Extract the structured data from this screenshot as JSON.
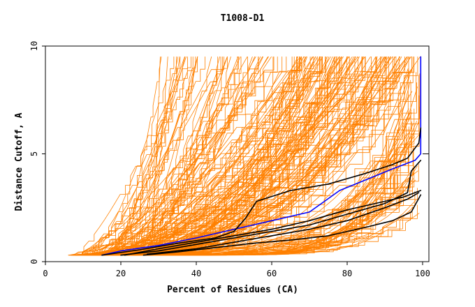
{
  "chart_data": {
    "type": "line",
    "title": "T1008-D1",
    "xlabel": "Percent of Residues (CA)",
    "ylabel": "Distance Cutoff, A",
    "xlim": [
      0,
      100
    ],
    "ylim": [
      0,
      10
    ],
    "xticks": [
      0,
      20,
      40,
      60,
      80,
      100
    ],
    "yticks": [
      0,
      5,
      10
    ],
    "grid": false,
    "legend": "none",
    "colors": {
      "background_models": "#ff8000",
      "highlight_blue": "#0000ff",
      "highlight_black": "#000000",
      "frame": "#000000"
    },
    "series": [
      {
        "color": "#0000ff",
        "points": [
          [
            15,
            0.3
          ],
          [
            20,
            0.5
          ],
          [
            30,
            0.75
          ],
          [
            40,
            1.1
          ],
          [
            50,
            1.5
          ],
          [
            60,
            1.9
          ],
          [
            70,
            2.3
          ],
          [
            74,
            2.8
          ],
          [
            78,
            3.3
          ],
          [
            85,
            3.8
          ],
          [
            92,
            4.3
          ],
          [
            98,
            4.7
          ],
          [
            99.5,
            5
          ],
          [
            99.5,
            9.5
          ]
        ]
      },
      {
        "color": "#000000",
        "points": [
          [
            15,
            0.3
          ],
          [
            25,
            0.55
          ],
          [
            35,
            0.85
          ],
          [
            45,
            1.1
          ],
          [
            50,
            1.4
          ],
          [
            53,
            2
          ],
          [
            56,
            2.8
          ],
          [
            65,
            3.3
          ],
          [
            75,
            3.6
          ],
          [
            85,
            4.1
          ],
          [
            92,
            4.5
          ],
          [
            96,
            4.8
          ],
          [
            99,
            5.5
          ],
          [
            99.5,
            6.2
          ]
        ]
      },
      {
        "color": "#000000",
        "points": [
          [
            20,
            0.3
          ],
          [
            30,
            0.5
          ],
          [
            40,
            0.8
          ],
          [
            50,
            1.1
          ],
          [
            60,
            1.4
          ],
          [
            70,
            1.7
          ],
          [
            80,
            2.2
          ],
          [
            90,
            2.7
          ],
          [
            96,
            3.2
          ],
          [
            97,
            4.2
          ],
          [
            99.5,
            4.7
          ]
        ]
      },
      {
        "color": "#000000",
        "points": [
          [
            21,
            0.3
          ],
          [
            30,
            0.6
          ],
          [
            40,
            0.9
          ],
          [
            50,
            1.2
          ],
          [
            60,
            1.5
          ],
          [
            70,
            1.9
          ],
          [
            80,
            2.4
          ],
          [
            90,
            2.8
          ],
          [
            95,
            3.0
          ],
          [
            99.5,
            3.3
          ]
        ]
      },
      {
        "color": "#000000",
        "points": [
          [
            26,
            0.3
          ],
          [
            35,
            0.45
          ],
          [
            45,
            0.65
          ],
          [
            55,
            0.85
          ],
          [
            65,
            1.0
          ],
          [
            75,
            1.2
          ],
          [
            85,
            1.6
          ],
          [
            92,
            1.9
          ],
          [
            97,
            2.3
          ],
          [
            99.5,
            3.1
          ]
        ]
      },
      {
        "color": "#000000",
        "points": [
          [
            27,
            0.35
          ],
          [
            40,
            0.6
          ],
          [
            50,
            0.9
          ],
          [
            60,
            1.2
          ],
          [
            70,
            1.5
          ],
          [
            80,
            1.9
          ],
          [
            90,
            2.5
          ],
          [
            96,
            2.9
          ],
          [
            99,
            3.2
          ]
        ]
      }
    ]
  }
}
